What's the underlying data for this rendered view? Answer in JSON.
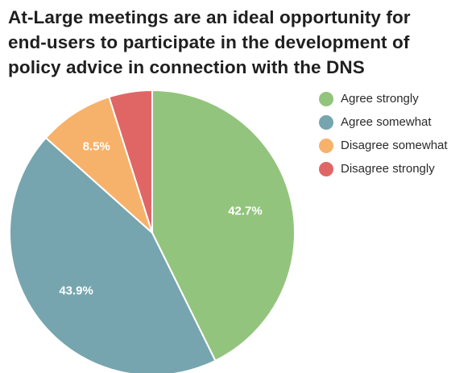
{
  "chart_data": {
    "type": "pie",
    "title_lines": [
      "At-Large meetings are an ideal opportunity for",
      "end-users to participate in the development of",
      "policy advice in connection with the DNS"
    ],
    "slices": [
      {
        "name": "Agree strongly",
        "value": 42.7,
        "label": "42.7%",
        "color": "#93c47d"
      },
      {
        "name": "Agree somewhat",
        "value": 43.9,
        "label": "43.9%",
        "color": "#76a5af"
      },
      {
        "name": "Disagree somewhat",
        "value": 8.5,
        "label": "8.5%",
        "color": "#f6b26b"
      },
      {
        "name": "Disagree strongly",
        "value": 4.9,
        "label": "",
        "color": "#e06666"
      }
    ],
    "legend_position": "top-right"
  }
}
